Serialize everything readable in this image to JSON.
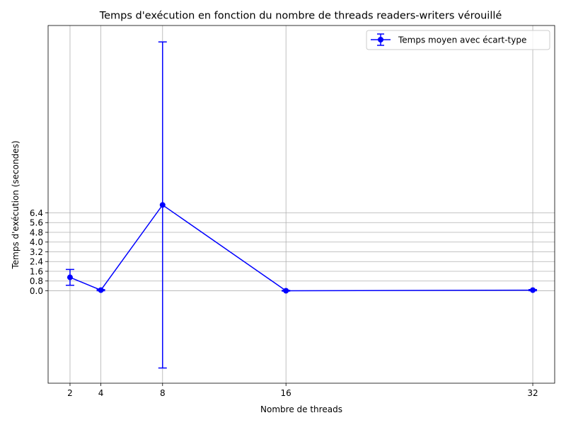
{
  "chart_data": {
    "type": "line",
    "title": "Temps d'exécution en fonction du nombre de threads readers-writers vérouillé",
    "xlabel": "Nombre de threads",
    "ylabel": "Temps d'exécution (secondes)",
    "x": [
      2,
      4,
      8,
      16,
      32
    ],
    "x_ticks": [
      "2",
      "4",
      "8",
      "16",
      "32"
    ],
    "xlim": [
      0.58,
      33.42
    ],
    "y_ticks": [
      "0.0",
      "0.8",
      "1.6",
      "2.4",
      "3.2",
      "4.0",
      "4.8",
      "5.6",
      "6.4"
    ],
    "ylim": [
      -7.6,
      21.8
    ],
    "series": [
      {
        "name": "Temps moyen avec écart-type",
        "values": [
          1.1,
          0.05,
          7.05,
          0.0,
          0.05
        ],
        "error": [
          0.65,
          0.05,
          13.4,
          0.03,
          0.05
        ],
        "color": "#0000ff",
        "marker": "circle"
      }
    ],
    "grid": true,
    "legend_position": "top-right"
  }
}
